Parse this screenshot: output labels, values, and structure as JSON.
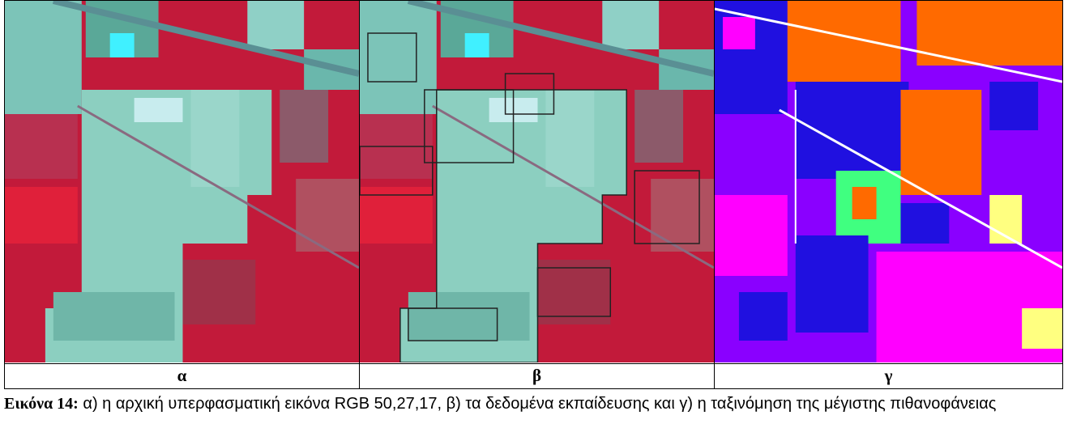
{
  "figure": {
    "panels": [
      {
        "label": "α"
      },
      {
        "label": "β"
      },
      {
        "label": "γ"
      }
    ]
  },
  "caption": {
    "label": "Εικόνα 14:",
    "text": "α) η αρχική υπερφασματική εικόνα RGB 50,27,17, β) τα δεδομένα εκπαίδευσης και  γ) η ταξινόμηση της μέγιστης πιθανοφάνειας"
  }
}
